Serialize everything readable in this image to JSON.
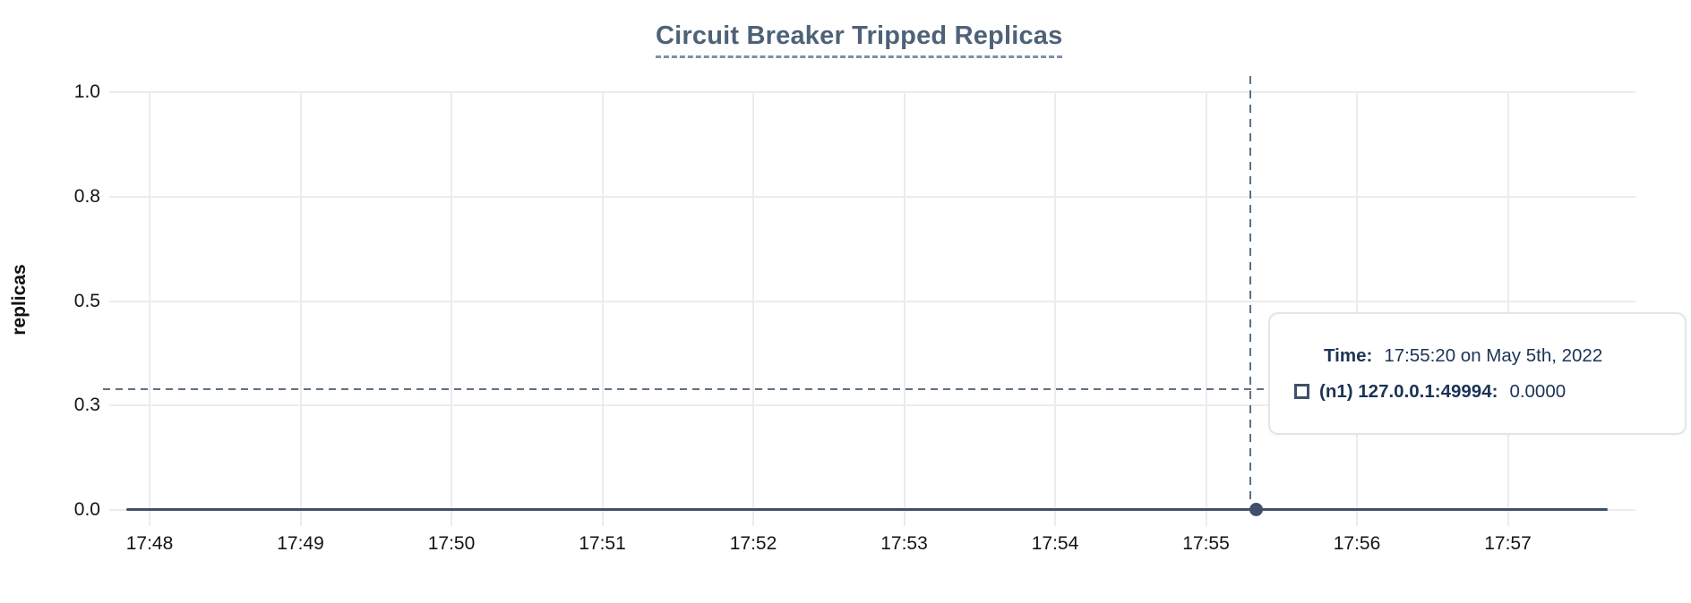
{
  "chart_data": {
    "type": "line",
    "title": "Circuit Breaker Tripped Replicas",
    "xlabel": "",
    "ylabel": "replicas",
    "x_tick_labels": [
      "17:48",
      "17:49",
      "17:50",
      "17:51",
      "17:52",
      "17:53",
      "17:54",
      "17:55",
      "17:56",
      "17:57"
    ],
    "y_tick_labels": [
      "1.0",
      "0.8",
      "0.5",
      "0.3",
      "0.0"
    ],
    "y_tick_values": [
      1.0,
      0.75,
      0.5,
      0.25,
      0.0
    ],
    "ylim": [
      0,
      1.0
    ],
    "grid": true,
    "legend_position": "floating-tooltip-right",
    "series": [
      {
        "name": "(n1) 127.0.0.1:49994",
        "color": "#40506a",
        "x": [
          "17:47:50",
          "17:57:40"
        ],
        "values": [
          0,
          0
        ],
        "note": "flat line at y=0 across the entire visible time range"
      }
    ],
    "highlighted_point": {
      "x": "17:55:20",
      "y": 0
    },
    "crosshair": {
      "x": "17:55:18",
      "y_value": 0.29,
      "style": "dashed",
      "color": "#5d7184"
    }
  },
  "title": "Circuit Breaker Tripped Replicas",
  "y_axis_title": "replicas",
  "tooltip": {
    "time_label": "Time:",
    "time_value": "17:55:20 on May 5th, 2022",
    "series_marker_icon": "square-outline",
    "series_label": "(n1) 127.0.0.1:49994:",
    "series_value": "0.0000"
  },
  "colors": {
    "series": "#40506a",
    "crosshair": "#5d7184",
    "gridline": "#ececec",
    "title_text": "#4e6277",
    "tooltip_text": "#1c3356",
    "tick_text": "#141414"
  }
}
